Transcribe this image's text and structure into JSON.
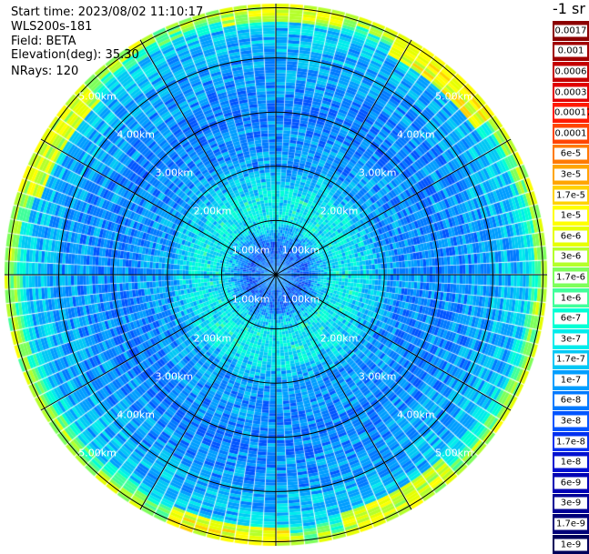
{
  "header": {
    "start_time": "Start time: 2023/08/02 11:10:17",
    "instrument": "WLS200s-181",
    "field": "Field: BETA",
    "elevation": "Elevation(deg): 35.30",
    "nrays": "NRays: 120"
  },
  "colorbar": {
    "title": "-1 sr",
    "levels": [
      {
        "label": "0.0017",
        "color": "#8b0000"
      },
      {
        "label": "0.001",
        "color": "#a00000"
      },
      {
        "label": "0.0006",
        "color": "#c40000"
      },
      {
        "label": "0.0003",
        "color": "#e10000"
      },
      {
        "label": "0.00017",
        "color": "#ff1a00"
      },
      {
        "label": "0.0001",
        "color": "#ff4500"
      },
      {
        "label": "6e-5",
        "color": "#ff7a00"
      },
      {
        "label": "3e-5",
        "color": "#ffa500"
      },
      {
        "label": "1.7e-5",
        "color": "#ffd200"
      },
      {
        "label": "1e-5",
        "color": "#ffff00"
      },
      {
        "label": "6e-6",
        "color": "#e6ff00"
      },
      {
        "label": "3e-6",
        "color": "#b4ff2a"
      },
      {
        "label": "1.7e-6",
        "color": "#7dff5a"
      },
      {
        "label": "1e-6",
        "color": "#40ff9a"
      },
      {
        "label": "6e-7",
        "color": "#00ffd4"
      },
      {
        "label": "3e-7",
        "color": "#00ecec"
      },
      {
        "label": "1.7e-7",
        "color": "#00c8f5"
      },
      {
        "label": "1e-7",
        "color": "#009eff"
      },
      {
        "label": "6e-8",
        "color": "#007aff"
      },
      {
        "label": "3e-8",
        "color": "#0055ff"
      },
      {
        "label": "1.7e-8",
        "color": "#0030f0"
      },
      {
        "label": "1e-8",
        "color": "#0010d0"
      },
      {
        "label": "6e-9",
        "color": "#0000b4"
      },
      {
        "label": "3e-9",
        "color": "#000096"
      },
      {
        "label": "1.7e-9",
        "color": "#000078"
      },
      {
        "label": "1e-9",
        "color": "#00005a"
      }
    ]
  },
  "chart_data": {
    "type": "heatmap",
    "projection": "polar (PPI)",
    "field": "BETA",
    "units": "-1 sr",
    "nrays": 120,
    "max_range_km": 5.0,
    "range_ring_labels": [
      "1.00km",
      "2.00km",
      "3.00km",
      "4.00km",
      "5.00km"
    ],
    "rings_km": [
      1,
      2,
      3,
      4,
      5
    ],
    "spokes_every_deg": 30,
    "radial_profile": [
      {
        "range_km": 0.0,
        "level": "1e-7"
      },
      {
        "range_km": 0.5,
        "level": "3e-8"
      },
      {
        "range_km": 1.0,
        "level": "3e-7"
      },
      {
        "range_km": 1.5,
        "level": "3e-7"
      },
      {
        "range_km": 2.0,
        "level": "1e-7"
      },
      {
        "range_km": 3.0,
        "level": "6e-8"
      },
      {
        "range_km": 4.0,
        "level": "1e-7"
      },
      {
        "range_km": 4.6,
        "level": "1.7e-7"
      },
      {
        "range_km": 4.9,
        "level": "3e-6"
      }
    ],
    "hotspots": [
      {
        "azimuth_deg": 0,
        "range_km": 4.9,
        "level": "1e-5"
      },
      {
        "azimuth_deg": 40,
        "range_km": 4.8,
        "level": "1.7e-5"
      },
      {
        "azimuth_deg": 150,
        "range_km": 4.8,
        "level": "1e-5"
      },
      {
        "azimuth_deg": 190,
        "range_km": 4.9,
        "level": "1.7e-5"
      },
      {
        "azimuth_deg": 300,
        "range_km": 4.8,
        "level": "1e-5"
      }
    ]
  }
}
